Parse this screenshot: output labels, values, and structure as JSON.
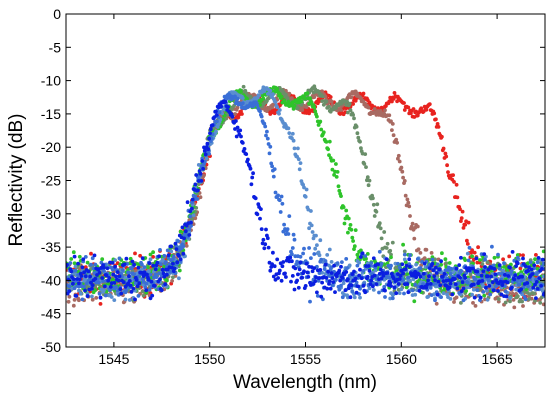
{
  "chart_data": {
    "type": "scatter",
    "xlabel": "Wavelength (nm)",
    "ylabel": "Reflectivity (dB)",
    "xlim": [
      1542.5,
      1567.5
    ],
    "ylim": [
      -50,
      0
    ],
    "xticks": [
      "1545",
      "1550",
      "1555",
      "1560",
      "1565"
    ],
    "yticks": [
      "0",
      "-5",
      "-10",
      "-15",
      "-20",
      "-25",
      "-30",
      "-35",
      "-40",
      "-45",
      "-50"
    ],
    "grid": false,
    "series": [
      {
        "color": "#e8231f",
        "band_edge_nm": 1562.8,
        "plateau_db": -13.5,
        "baseline_db": -39.5
      },
      {
        "color": "#a86a62",
        "band_edge_nm": 1560.3,
        "plateau_db": -13.0,
        "baseline_db": -41.0
      },
      {
        "color": "#6a8f6a",
        "band_edge_nm": 1558.4,
        "plateau_db": -12.5,
        "baseline_db": -40.0
      },
      {
        "color": "#2ec42a",
        "band_edge_nm": 1556.7,
        "plateau_db": -12.5,
        "baseline_db": -39.0
      },
      {
        "color": "#5a8ecf",
        "band_edge_nm": 1554.9,
        "plateau_db": -12.0,
        "baseline_db": -40.0
      },
      {
        "color": "#3a6fd6",
        "band_edge_nm": 1553.5,
        "plateau_db": -11.5,
        "baseline_db": -39.5
      },
      {
        "color": "#0a1ee0",
        "band_edge_nm": 1552.2,
        "plateau_db": -10.5,
        "baseline_db": -39.5
      }
    ]
  }
}
